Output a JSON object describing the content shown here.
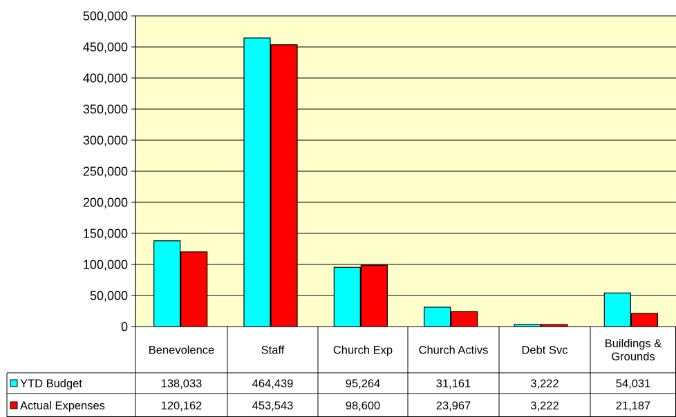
{
  "chart_data": {
    "type": "bar",
    "categories": [
      "Benevolence",
      "Staff",
      "Church Exp",
      "Church Activs",
      "Debt Svc",
      "Buildings & Grounds"
    ],
    "category_lines": [
      [
        "Benevolence"
      ],
      [
        "Staff"
      ],
      [
        "Church Exp"
      ],
      [
        "Church Activs"
      ],
      [
        "Debt Svc"
      ],
      [
        "Buildings &",
        "Grounds"
      ]
    ],
    "series": [
      {
        "name": "YTD Budget",
        "values": [
          138033,
          464439,
          95264,
          31161,
          3222,
          54031
        ],
        "display": [
          "138,033",
          "464,439",
          "95,264",
          "31,161",
          "3,222",
          "54,031"
        ],
        "color": "#00FFFF"
      },
      {
        "name": "Actual Expenses",
        "values": [
          120162,
          453543,
          98600,
          23967,
          3222,
          21187
        ],
        "display": [
          "120,162",
          "453,543",
          "98,600",
          "23,967",
          "3,222",
          "21,187"
        ],
        "color": "#FF0000"
      }
    ],
    "ylim": [
      0,
      500000
    ],
    "y_ticks": [
      0,
      50000,
      100000,
      150000,
      200000,
      250000,
      300000,
      350000,
      400000,
      450000,
      500000
    ],
    "y_tick_labels": [
      "0",
      "50,000",
      "100,000",
      "150,000",
      "200,000",
      "250,000",
      "300,000",
      "350,000",
      "400,000",
      "450,000",
      "500,000"
    ],
    "grid": true,
    "plot_background": "#FFFFCC",
    "legend": "data-table",
    "title": "",
    "xlabel": "",
    "ylabel": ""
  }
}
